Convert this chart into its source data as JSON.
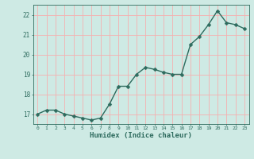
{
  "x": [
    0,
    1,
    2,
    3,
    4,
    5,
    6,
    7,
    8,
    9,
    10,
    11,
    12,
    13,
    14,
    15,
    16,
    17,
    18,
    19,
    20,
    21,
    22,
    23
  ],
  "y": [
    17.0,
    17.2,
    17.2,
    17.0,
    16.9,
    16.8,
    16.7,
    16.8,
    17.5,
    18.4,
    18.4,
    19.0,
    19.35,
    19.25,
    19.1,
    19.0,
    19.0,
    20.5,
    20.9,
    21.5,
    22.2,
    21.6,
    21.5,
    21.3
  ],
  "bg_color": "#ceeae4",
  "line_color": "#2e6b5e",
  "marker_color": "#2e6b5e",
  "grid_color": "#f5b0b0",
  "axis_color": "#2e6b5e",
  "tick_color": "#2e6b5e",
  "xlabel": "Humidex (Indice chaleur)",
  "ylim": [
    16.5,
    22.5
  ],
  "xlim": [
    -0.5,
    23.5
  ],
  "yticks": [
    17,
    18,
    19,
    20,
    21,
    22
  ],
  "xticks": [
    0,
    1,
    2,
    3,
    4,
    5,
    6,
    7,
    8,
    9,
    10,
    11,
    12,
    13,
    14,
    15,
    16,
    17,
    18,
    19,
    20,
    21,
    22,
    23
  ],
  "font_family": "monospace",
  "linewidth": 1.0,
  "markersize": 2.5
}
